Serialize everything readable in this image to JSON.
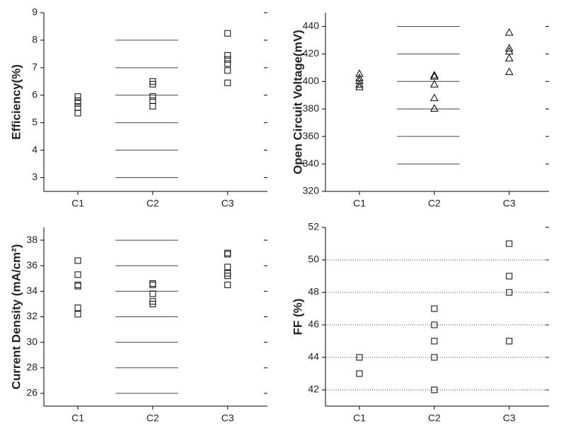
{
  "chart_data": [
    {
      "type": "scatter",
      "y_label": "Efficiency(%)",
      "categories": [
        "C1",
        "C2",
        "C3"
      ],
      "values": [
        [
          5.95,
          5.8,
          5.7,
          5.55,
          5.35
        ],
        [
          6.5,
          6.4,
          5.95,
          5.8,
          5.6
        ],
        [
          8.25,
          7.45,
          7.3,
          7.15,
          6.9,
          6.45
        ]
      ],
      "ylim": [
        2.5,
        9
      ],
      "yticks": [
        3,
        4,
        5,
        6,
        7,
        8,
        9
      ],
      "marker": "square",
      "color": "#000000",
      "grid": "partial"
    },
    {
      "type": "scatter",
      "y_label": "Open Circuit Voltage(mV)",
      "categories": [
        "C1",
        "C2",
        "C3"
      ],
      "values": [
        [
          405.7,
          402.6,
          400.5,
          398,
          396
        ],
        [
          404.6,
          403.6,
          398,
          388,
          380.4
        ],
        [
          435.6,
          424.2,
          422,
          417,
          407
        ]
      ],
      "ylim": [
        320,
        450
      ],
      "yticks": [
        320,
        340,
        360,
        380,
        400,
        420,
        440
      ],
      "marker": "triangle",
      "color": "#000000",
      "grid": "partial"
    },
    {
      "type": "scatter",
      "y_label": "Current Density (mA/cm²)",
      "categories": [
        "C1",
        "C2",
        "C3"
      ],
      "values": [
        [
          36.4,
          35.3,
          34.5,
          34.4,
          32.7,
          32.2
        ],
        [
          34.6,
          34.5,
          33.8,
          33.2,
          33.0
        ],
        [
          37.0,
          36.9,
          35.9,
          35.4,
          35.2,
          34.5
        ]
      ],
      "ylim": [
        25,
        39
      ],
      "yticks": [
        26,
        28,
        30,
        32,
        34,
        36,
        38
      ],
      "marker": "square",
      "color": "#000000",
      "grid": "partial"
    },
    {
      "type": "scatter",
      "y_label": "FF (%)",
      "categories": [
        "C1",
        "C2",
        "C3"
      ],
      "values": [
        [
          44,
          43
        ],
        [
          47,
          46,
          45,
          44,
          42
        ],
        [
          51,
          49,
          48,
          45
        ]
      ],
      "ylim": [
        41,
        52
      ],
      "yticks": [
        42,
        44,
        46,
        48,
        50,
        52
      ],
      "marker": "square",
      "color": "#000000",
      "grid": "dotted"
    }
  ]
}
